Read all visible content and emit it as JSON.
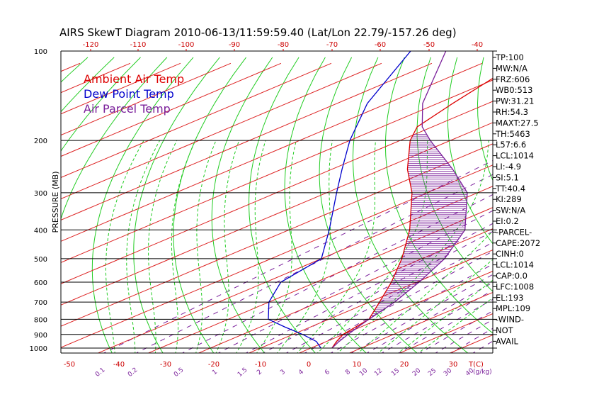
{
  "chart_data": {
    "type": "line",
    "title": "AIRS SkewT Diagram 2010-06-13/11:59:59.40 (Lat/Lon 22.79/-157.26 deg)",
    "ylabel": "PRESSURE (MB)",
    "y_scale": "log",
    "ylim": [
      1050,
      100
    ],
    "pressure_ticks": [
      100,
      200,
      300,
      400,
      500,
      600,
      700,
      800,
      900,
      1000
    ],
    "top_temp_ticks": [
      -120,
      -110,
      -100,
      -90,
      -80,
      -70,
      -60,
      -50,
      -40
    ],
    "bottom_temp_ticks": [
      -50,
      -40,
      -30,
      -20,
      -10,
      0,
      10,
      20,
      30
    ],
    "bottom_temp_unit": "T(C)",
    "mixing_ratio_ticks": [
      "0.1",
      "0.2",
      "0.5",
      "1",
      "1.5",
      "2",
      "3",
      "4",
      "6",
      "8",
      "10",
      "12",
      "15",
      "20",
      "25",
      "30",
      "40"
    ],
    "mixing_ratio_unit": "(g/kg)",
    "legend": [
      {
        "label": "Ambient Air Temp",
        "color": "#dd0000"
      },
      {
        "label": "Dew Point Temp",
        "color": "#0000cc"
      },
      {
        "label": "Air Parcel Temp",
        "color": "#7a1f9a"
      }
    ],
    "series": [
      {
        "name": "Ambient Air Temp",
        "color": "#dd0000",
        "points": [
          [
            1000,
            24.2
          ],
          [
            950,
            22.0
          ],
          [
            900,
            20.0
          ],
          [
            850,
            19.0
          ],
          [
            800,
            18.0
          ],
          [
            700,
            12.0
          ],
          [
            600,
            5.0
          ],
          [
            500,
            -4.0
          ],
          [
            400,
            -16.0
          ],
          [
            300,
            -33.0
          ],
          [
            250,
            -45.0
          ],
          [
            200,
            -58.0
          ],
          [
            180,
            -63.0
          ],
          [
            150,
            -67.0
          ],
          [
            100,
            -75.0
          ]
        ]
      },
      {
        "name": "Dew Point Temp",
        "color": "#0000cc",
        "points": [
          [
            1000,
            22.0
          ],
          [
            950,
            18.0
          ],
          [
            900,
            12.0
          ],
          [
            850,
            5.0
          ],
          [
            800,
            -2.0
          ],
          [
            700,
            -10.0
          ],
          [
            600,
            -17.0
          ],
          [
            500,
            -20.0
          ],
          [
            400,
            -32.0
          ],
          [
            300,
            -48.0
          ],
          [
            250,
            -58.0
          ],
          [
            200,
            -70.0
          ],
          [
            150,
            -84.0
          ],
          [
            100,
            -100.0
          ]
        ]
      },
      {
        "name": "Air Parcel Temp",
        "color": "#7a1f9a",
        "points": [
          [
            1000,
            24.2
          ],
          [
            950,
            22.5
          ],
          [
            900,
            21.0
          ],
          [
            850,
            19.5
          ],
          [
            800,
            18.0
          ],
          [
            700,
            15.0
          ],
          [
            600,
            10.5
          ],
          [
            500,
            4.5
          ],
          [
            400,
            -5.0
          ],
          [
            300,
            -22.0
          ],
          [
            250,
            -36.0
          ],
          [
            200,
            -54.0
          ],
          [
            180,
            -62.0
          ],
          [
            150,
            -73.0
          ],
          [
            100,
            -93.0
          ]
        ]
      }
    ],
    "indices": [
      "TP:100",
      "MW:N/A",
      "FRZ:606",
      "WB0:513",
      "PW:31.21",
      "RH:54.3",
      "MAXT:27.5",
      "TH:5463",
      "L57:6.6",
      "LCL:1014",
      "LI:-4.9",
      "SI:5.1",
      "TT:40.4",
      "KI:289",
      "SW:N/A",
      "EI:0.2",
      "-PARCEL-",
      "CAPE:2072",
      "CINH:0",
      "LCL:1014",
      "CAP:0.0",
      "LFC:1008",
      "EL:193",
      "MPL:109",
      "-WIND-",
      "NOT",
      "AVAIL"
    ],
    "colors": {
      "isotherm": "#dd2222",
      "dry_adiabat": "#22cc22",
      "moist_adiabat": "#22cc22",
      "mixing_ratio": "#7a1f9a",
      "isobar": "#000000",
      "cape_hatch": "#7a1f9a"
    }
  }
}
